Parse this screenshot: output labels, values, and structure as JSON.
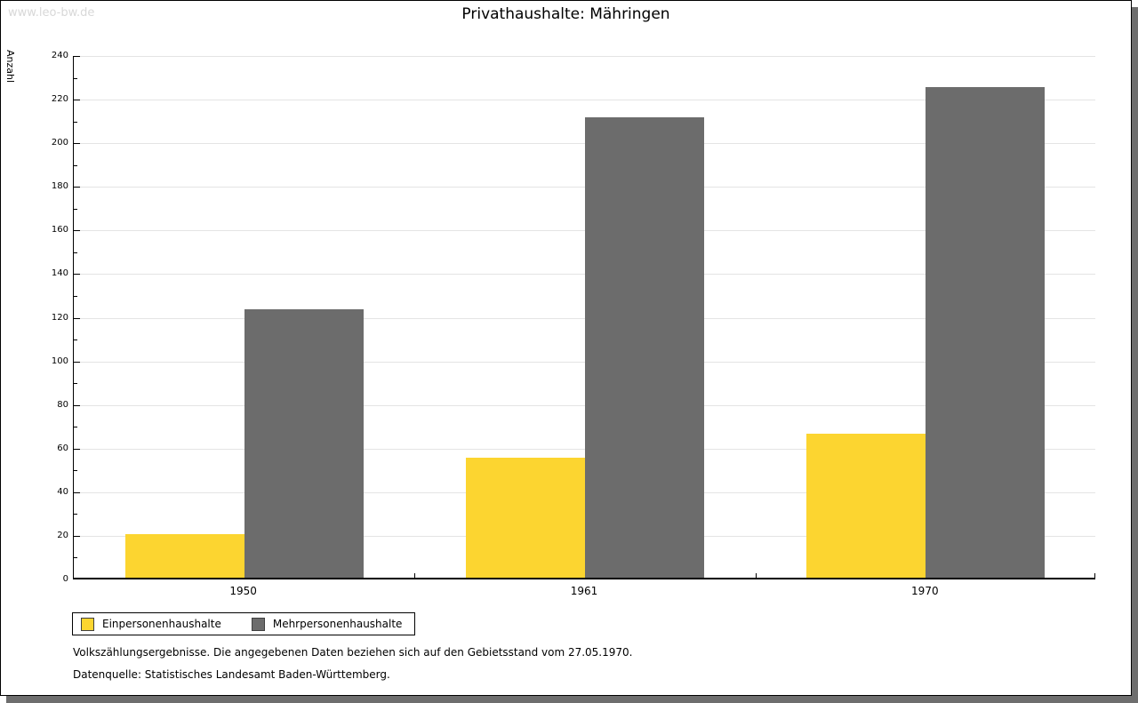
{
  "page": {
    "watermark": "www.leo-bw.de",
    "footer_line1": "Volkszählungsergebnisse. Die angegebenen Daten beziehen sich auf den Gebietsstand vom 27.05.1970.",
    "footer_line2": "Datenquelle: Statistisches Landesamt Baden-Württemberg."
  },
  "chart_data": {
    "type": "bar",
    "title": "Privathaushalte: Mähringen",
    "ylabel": "Anzahl",
    "xlabel": "",
    "categories": [
      "1950",
      "1961",
      "1970"
    ],
    "series": [
      {
        "name": "Einpersonenhaushalte",
        "color": "#fcd530",
        "values": [
          20,
          55,
          66
        ]
      },
      {
        "name": "Mehrpersonenhaushalte",
        "color": "#6c6c6c",
        "values": [
          123,
          211,
          225
        ]
      }
    ],
    "ylim": [
      0,
      240
    ],
    "ytick_step": 20,
    "yminor_step": 10,
    "grid": true,
    "legend_position": "bottom-left",
    "colors": {
      "grid": "#e4e4e4",
      "axis": "#000000",
      "frame_shadow": "#6e6e6e",
      "watermark": "#d8d8d8"
    }
  }
}
